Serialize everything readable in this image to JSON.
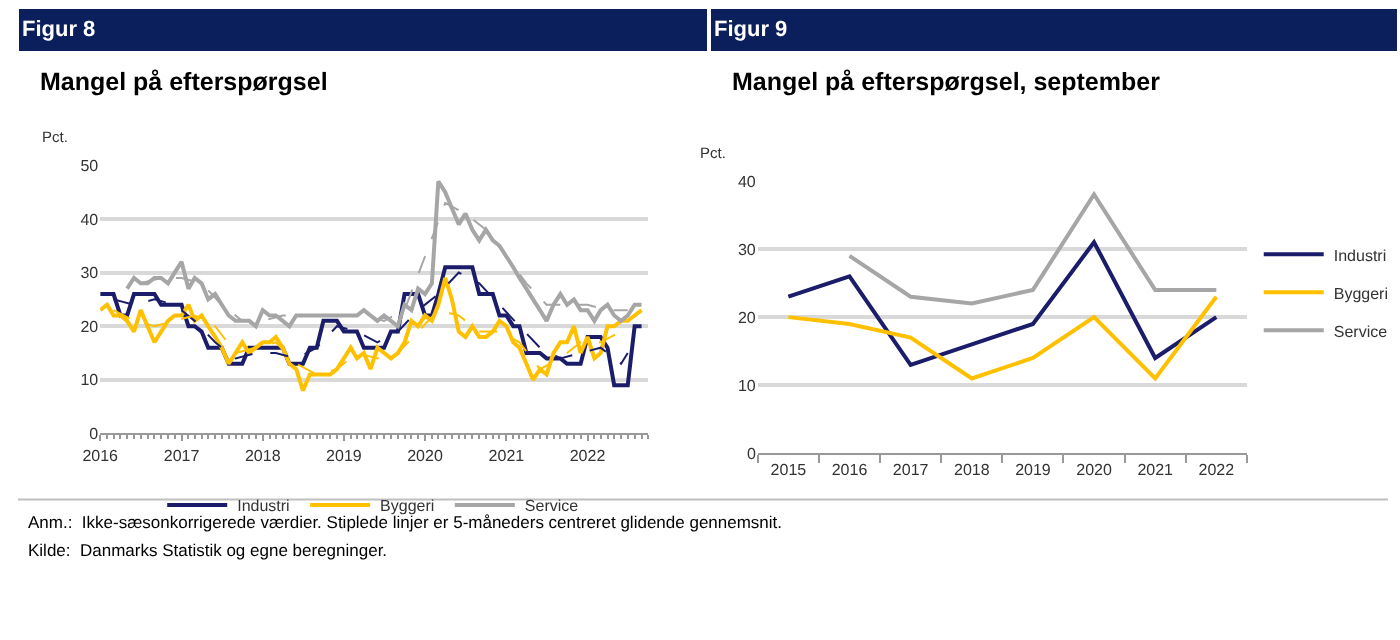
{
  "chart_data": [
    {
      "type": "line",
      "title": "Mangel på efterspørgsel",
      "ylabel": "Pct.",
      "annotations": [
        "Figur 8",
        "Anm.:  Ikke-sæsonkorrigerede værdier. Stiplede linjer er 5-måneders centreret glidende gennemsnit.",
        "Kilde:  Danmarks Statistik og egne beregninger."
      ],
      "x": [
        "2016-01",
        "2016-02",
        "2016-03",
        "2016-04",
        "2016-05",
        "2016-06",
        "2016-07",
        "2016-08",
        "2016-09",
        "2016-10",
        "2016-11",
        "2016-12",
        "2017-01",
        "2017-02",
        "2017-03",
        "2017-04",
        "2017-05",
        "2017-06",
        "2017-07",
        "2017-08",
        "2017-09",
        "2017-10",
        "2017-11",
        "2017-12",
        "2018-01",
        "2018-02",
        "2018-03",
        "2018-04",
        "2018-05",
        "2018-06",
        "2018-07",
        "2018-08",
        "2018-09",
        "2018-10",
        "2018-11",
        "2018-12",
        "2019-01",
        "2019-02",
        "2019-03",
        "2019-04",
        "2019-05",
        "2019-06",
        "2019-07",
        "2019-08",
        "2019-09",
        "2019-10",
        "2019-11",
        "2019-12",
        "2020-01",
        "2020-02",
        "2020-03",
        "2020-04",
        "2020-05",
        "2020-06",
        "2020-07",
        "2020-08",
        "2020-09",
        "2020-10",
        "2020-11",
        "2020-12",
        "2021-01",
        "2021-02",
        "2021-03",
        "2021-04",
        "2021-05",
        "2021-06",
        "2021-07",
        "2021-08",
        "2021-09",
        "2021-10",
        "2021-11",
        "2021-12",
        "2022-01",
        "2022-02",
        "2022-03",
        "2022-04",
        "2022-05",
        "2022-06",
        "2022-07",
        "2022-08",
        "2022-09"
      ],
      "series": [
        {
          "name": "Industri",
          "color": "#1b1d6b",
          "values": [
            26,
            26,
            26,
            22,
            22,
            26,
            26,
            26,
            26,
            24,
            24,
            24,
            24,
            20,
            20,
            19,
            16,
            16,
            16,
            13,
            13,
            13,
            16,
            16,
            16,
            16,
            16,
            16,
            13,
            13,
            13,
            16,
            16,
            21,
            21,
            21,
            19,
            19,
            19,
            16,
            16,
            16,
            16,
            19,
            19,
            26,
            26,
            26,
            22,
            22,
            26,
            31,
            31,
            31,
            31,
            31,
            26,
            26,
            26,
            22,
            22,
            20,
            20,
            15,
            15,
            15,
            14,
            14,
            14,
            13,
            13,
            13,
            18,
            18,
            18,
            16,
            9,
            9,
            9,
            20,
            20
          ]
        },
        {
          "name": "Byggeri",
          "color": "#ffc000",
          "values": [
            23,
            24,
            22,
            22,
            21,
            19,
            23,
            20,
            17,
            19,
            21,
            22,
            22,
            24,
            21,
            22,
            20,
            18,
            16,
            13,
            15,
            17,
            15,
            16,
            17,
            17,
            18,
            16,
            13,
            12,
            8,
            11,
            11,
            11,
            11,
            12,
            14,
            16,
            14,
            15,
            12,
            16,
            15,
            14,
            15,
            17,
            21,
            20,
            22,
            21,
            24,
            29,
            25,
            19,
            18,
            20,
            18,
            18,
            19,
            21,
            20,
            17,
            16,
            13,
            10,
            12,
            11,
            15,
            17,
            17,
            20,
            15,
            18,
            14,
            15,
            20,
            20,
            21,
            21,
            22,
            23
          ]
        },
        {
          "name": "Service",
          "color": "#a6a6a6",
          "values": [
            null,
            null,
            null,
            null,
            27,
            29,
            28,
            28,
            29,
            29,
            28,
            30,
            32,
            27,
            29,
            28,
            25,
            26,
            24,
            22,
            21,
            21,
            21,
            20,
            23,
            22,
            22,
            21,
            20,
            22,
            22,
            22,
            22,
            22,
            22,
            22,
            22,
            22,
            22,
            23,
            22,
            21,
            22,
            21,
            20,
            24,
            23,
            27,
            26,
            28,
            47,
            45,
            42,
            39,
            41,
            38,
            36,
            38,
            36,
            35,
            33,
            31,
            29,
            27,
            25,
            23,
            21,
            24,
            26,
            24,
            25,
            23,
            23,
            21,
            23,
            24,
            22,
            21,
            22,
            24,
            24
          ]
        },
        {
          "color": "#1b1d6b",
          "line_style": "dashed",
          "x": [
            "2016-03",
            "2016-06",
            "2016-09",
            "2016-12",
            "2017-03",
            "2017-06",
            "2017-09",
            "2017-12",
            "2018-03",
            "2018-06",
            "2018-09",
            "2018-12",
            "2019-03",
            "2019-06",
            "2019-09",
            "2019-12",
            "2020-03",
            "2020-06",
            "2020-09",
            "2020-12",
            "2021-03",
            "2021-06",
            "2021-09",
            "2021-12",
            "2022-03",
            "2022-06",
            "2022-07"
          ],
          "values": [
            25,
            24,
            25,
            24,
            21,
            17,
            14,
            15,
            15,
            14,
            16,
            20,
            19,
            17,
            19,
            23,
            26,
            30,
            28,
            24,
            20,
            16,
            14,
            15,
            16,
            13,
            15
          ]
        },
        {
          "color": "#ffc000",
          "line_style": "dashed",
          "x": [
            "2016-03",
            "2016-06",
            "2016-09",
            "2016-12",
            "2017-03",
            "2017-06",
            "2017-09",
            "2017-12",
            "2018-03",
            "2018-06",
            "2018-09",
            "2018-12",
            "2019-03",
            "2019-06",
            "2019-09",
            "2019-12",
            "2020-03",
            "2020-06",
            "2020-09",
            "2020-12",
            "2021-03",
            "2021-06",
            "2021-09",
            "2021-12",
            "2022-03",
            "2022-06",
            "2022-07"
          ],
          "values": [
            23,
            21,
            20,
            21,
            22,
            20,
            15,
            16,
            17,
            13,
            11,
            12,
            15,
            14,
            15,
            19,
            23,
            22,
            19,
            19,
            17,
            12,
            14,
            17,
            17,
            19,
            21
          ]
        },
        {
          "color": "#a6a6a6",
          "line_style": "dashed",
          "x": [
            "2016-07",
            "2016-10",
            "2017-01",
            "2017-04",
            "2017-07",
            "2017-10",
            "2018-01",
            "2018-04",
            "2018-07",
            "2018-10",
            "2019-01",
            "2019-04",
            "2019-07",
            "2019-10",
            "2020-01",
            "2020-04",
            "2020-07",
            "2020-10",
            "2021-01",
            "2021-04",
            "2021-07",
            "2021-10",
            "2022-01",
            "2022-04",
            "2022-07"
          ],
          "values": [
            28,
            29,
            29,
            28,
            24,
            21,
            21,
            22,
            22,
            22,
            22,
            22,
            21,
            23,
            33,
            43,
            41,
            38,
            33,
            28,
            24,
            24,
            24,
            23,
            23
          ]
        }
      ],
      "xlim": [
        "2016-01",
        "2022-10"
      ],
      "xticks": [
        "2016",
        "2017",
        "2018",
        "2019",
        "2020",
        "2021",
        "2022"
      ],
      "ylim": [
        0,
        50
      ],
      "yticks": [
        0,
        10,
        20,
        30,
        40,
        50
      ],
      "grid": "y",
      "legend": "bottom"
    },
    {
      "type": "line",
      "title": "Mangel på efterspørgsel, september",
      "ylabel": "Pct.",
      "annotations": [
        "Figur 9"
      ],
      "categories": [
        "2015",
        "2016",
        "2017",
        "2018",
        "2019",
        "2020",
        "2021",
        "2022"
      ],
      "series": [
        {
          "name": "Industri",
          "color": "#1b1d6b",
          "values": [
            23,
            26,
            13,
            16,
            19,
            31,
            14,
            20
          ]
        },
        {
          "name": "Byggeri",
          "color": "#ffc000",
          "values": [
            20,
            19,
            17,
            11,
            14,
            20,
            11,
            23
          ]
        },
        {
          "name": "Service",
          "color": "#a6a6a6",
          "values": [
            null,
            29,
            23,
            22,
            24,
            38,
            24,
            24
          ]
        }
      ],
      "ylim": [
        0,
        40
      ],
      "yticks": [
        0,
        10,
        20,
        30,
        40
      ],
      "grid": "y",
      "legend": "right"
    }
  ]
}
